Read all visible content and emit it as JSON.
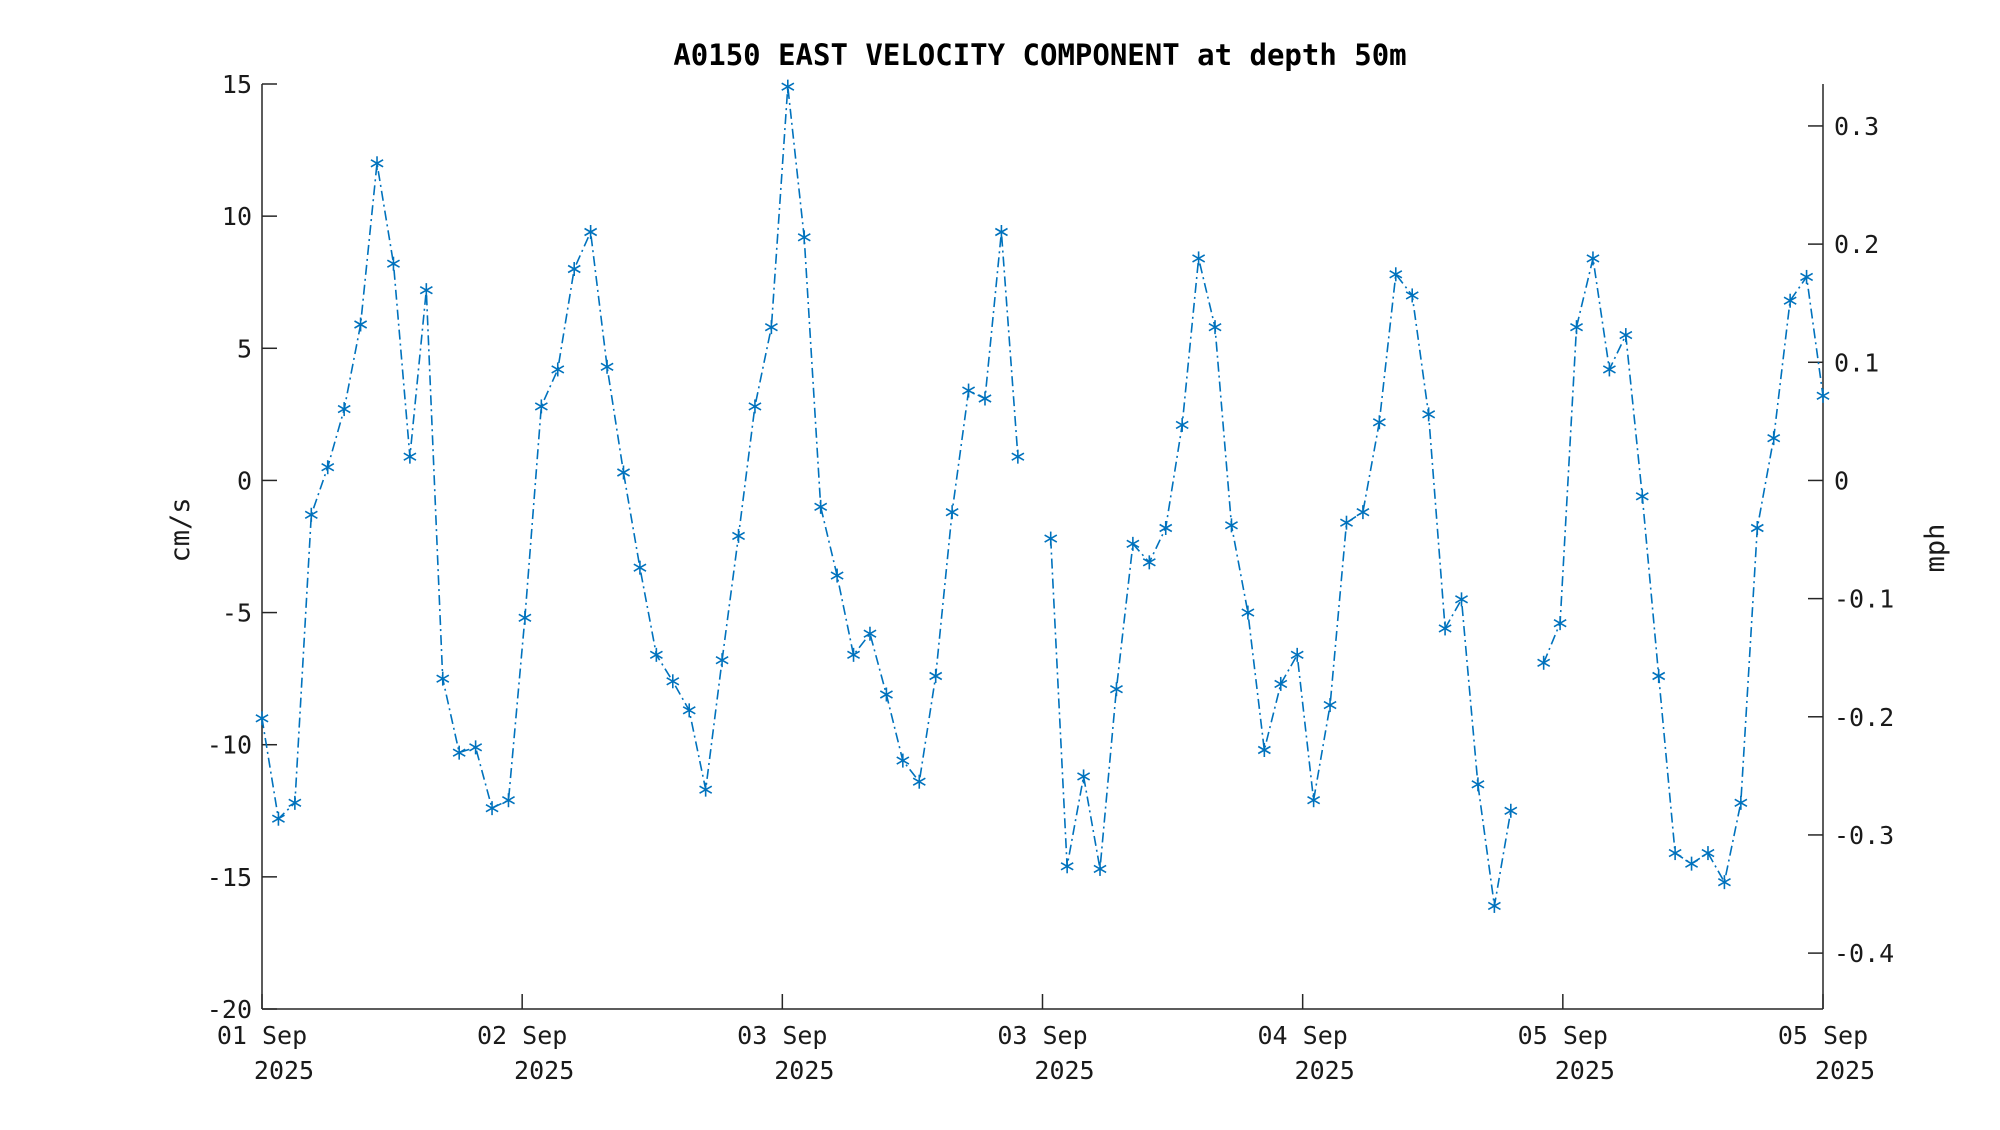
{
  "chart_data": {
    "type": "line",
    "title": "A0150 EAST VELOCITY COMPONENT at depth 50m",
    "ylabel": "cm/s",
    "y2label": "mph",
    "ylim": [
      -20,
      15
    ],
    "y2lim": [
      -0.4473,
      0.3355
    ],
    "yticks": [
      "15",
      "10",
      "5",
      "0",
      "-5",
      "-10",
      "-15",
      "-20"
    ],
    "y2ticks": [
      "0.3",
      "0.2",
      "0.1",
      "0",
      "-0.1",
      "-0.2",
      "-0.3",
      "-0.4"
    ],
    "xticks": [
      {
        "line1": "01 Sep",
        "line2": "2025"
      },
      {
        "line1": "02 Sep",
        "line2": "2025"
      },
      {
        "line1": "03 Sep",
        "line2": "2025"
      },
      {
        "line1": "03 Sep",
        "line2": "2025"
      },
      {
        "line1": "04 Sep",
        "line2": "2025"
      },
      {
        "line1": "05 Sep",
        "line2": "2025"
      },
      {
        "line1": "05 Sep",
        "line2": "2025"
      }
    ],
    "grid": false,
    "marker": "asterisk",
    "line_style": "dash-dot",
    "color": "#0072BD",
    "series": [
      {
        "x": [
          0,
          1,
          2,
          3,
          4,
          5,
          6,
          7,
          8,
          9,
          10,
          11,
          12,
          13,
          14,
          15,
          16,
          17,
          18,
          19,
          20,
          21,
          22,
          23,
          24,
          25,
          26,
          27,
          28,
          29,
          30,
          31,
          32,
          33,
          34,
          35,
          36,
          37,
          38,
          39,
          40,
          41,
          42,
          43,
          44,
          45,
          46,
          47,
          48,
          49,
          50,
          51,
          52,
          53,
          54,
          55,
          56,
          57,
          58,
          59,
          60,
          61,
          62,
          63,
          64,
          65,
          66,
          67,
          68,
          69,
          70,
          71,
          72,
          73,
          74,
          75,
          76,
          77,
          78,
          79,
          80,
          81,
          82,
          83,
          84,
          85,
          86,
          87,
          88,
          89,
          90,
          91,
          92,
          93,
          94,
          95
        ],
        "values": [
          -9.0,
          -12.8,
          -12.2,
          -1.3,
          0.5,
          2.7,
          5.9,
          12.0,
          8.2,
          0.9,
          7.2,
          -7.5,
          -10.3,
          -10.1,
          -12.4,
          -12.1,
          -5.2,
          2.8,
          4.2,
          8.0,
          9.4,
          4.3,
          0.3,
          -3.3,
          -6.6,
          -7.6,
          -8.7,
          -11.7,
          -6.8,
          -2.1,
          2.8,
          5.8,
          14.9,
          9.2,
          -1.0,
          -3.6,
          -6.6,
          -5.8,
          -8.1,
          -10.6,
          -11.4,
          -7.4,
          -1.2,
          3.4,
          3.1,
          9.4,
          0.9,
          null,
          -2.2,
          -14.6,
          -11.2,
          -14.7,
          -7.9,
          -2.4,
          -3.1,
          -1.8,
          2.1,
          8.4,
          5.8,
          -1.7,
          -5.0,
          -10.2,
          -7.7,
          -6.6,
          -12.1,
          -8.5,
          -1.6,
          -1.2,
          2.2,
          7.8,
          7.0,
          2.5,
          -5.6,
          -4.5,
          -11.5,
          -16.1,
          -12.5,
          null,
          -6.9,
          -5.4,
          5.8,
          8.4,
          4.2,
          5.5,
          -0.6,
          -7.4,
          -14.1,
          -14.5,
          -14.1,
          -15.2,
          -12.2,
          -1.8,
          1.6,
          6.8,
          7.7,
          3.2
        ]
      }
    ]
  }
}
